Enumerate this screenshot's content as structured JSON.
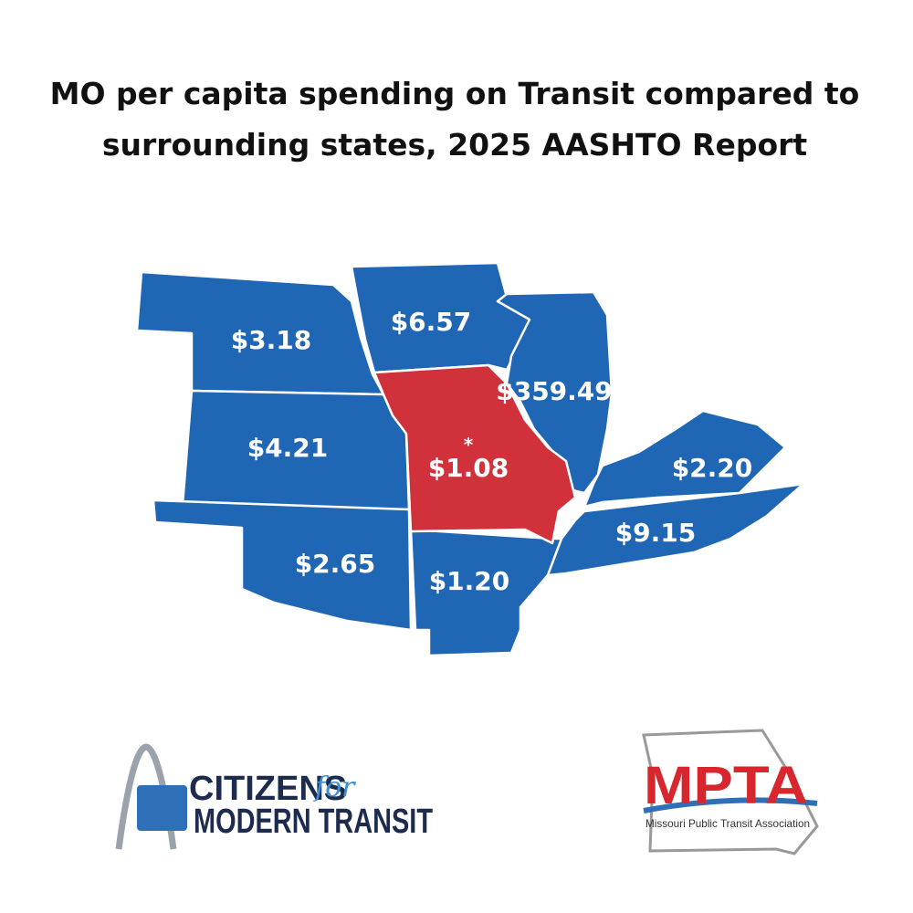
{
  "title": {
    "lines": [
      "MO per capita spending on Transit compared to",
      "surrounding states, 2025 AASHTO Report"
    ]
  },
  "map": {
    "regions": [
      {
        "label": "$3.18"
      },
      {
        "label": "$6.57"
      },
      {
        "label": "$359.49"
      },
      {
        "label": "$4.21"
      },
      {
        "label": "$1.08",
        "marker": "*"
      },
      {
        "label": "$2.20"
      },
      {
        "label": "$2.65"
      },
      {
        "label": "$9.15"
      },
      {
        "label": "$1.20"
      }
    ]
  },
  "logos": {
    "cmt": {
      "line1": "CITIZENS",
      "for": "for",
      "line2": "MODERN TRANSIT"
    },
    "mpta": {
      "abbr": "MPTA",
      "name": "Missouri Public Transit Association"
    }
  }
}
